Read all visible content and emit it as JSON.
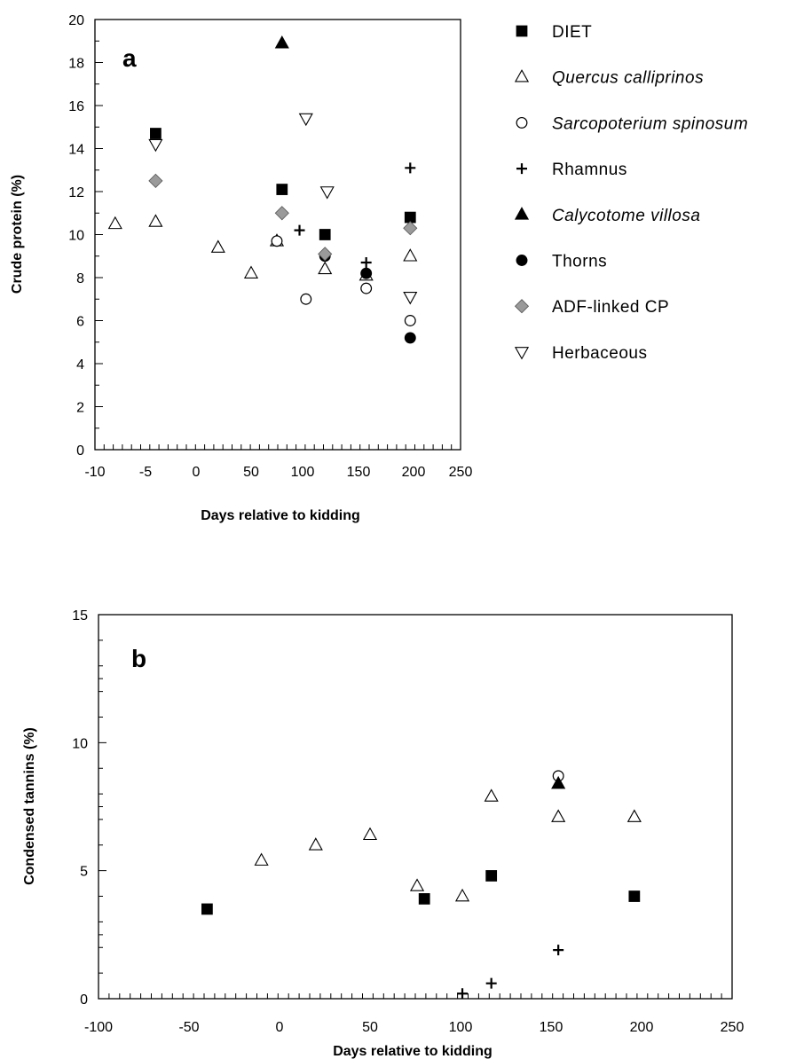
{
  "marker_styles": {
    "DIET": "filled-square",
    "Quercus calliprinos": "open-triangle-up",
    "Sarcopoterium spinosum": "open-circle",
    "Rhamnus": "plus",
    "Calycotome villosa": "filled-triangle-up",
    "Thorns": "filled-circle",
    "ADF-linked CP": "gray-diamond",
    "Herbaceous": "open-triangle-down"
  },
  "colors": {
    "ink": "#000000",
    "diamond_fill": "#9a9a9a"
  },
  "legend": {
    "entries": [
      {
        "label": "DIET",
        "italic": false
      },
      {
        "label": "Quercus calliprinos",
        "italic": true
      },
      {
        "label": "Sarcopoterium spinosum",
        "italic": true
      },
      {
        "label": "Rhamnus",
        "italic": false
      },
      {
        "label": "Calycotome villosa",
        "italic": true
      },
      {
        "label": "Thorns",
        "italic": false
      },
      {
        "label": "ADF-linked CP",
        "italic": false
      },
      {
        "label": "Herbaceous",
        "italic": false
      }
    ]
  },
  "chart_data": [
    {
      "type": "scatter",
      "panel_label": "a",
      "xlabel": "Days relative to kidding",
      "ylabel": "Crude protein (%)",
      "xticks": [
        -10,
        -5,
        0,
        50,
        100,
        150,
        200,
        250
      ],
      "yticks": [
        0,
        2,
        4,
        6,
        8,
        10,
        12,
        14,
        16,
        18,
        20
      ],
      "ylim": [
        0,
        20
      ],
      "legend_position": "right",
      "series": [
        {
          "name": "DIET",
          "points": [
            [
              -4,
              14.7
            ],
            [
              80,
              12.1
            ],
            [
              120,
              10.0
            ],
            [
              197,
              10.8
            ]
          ]
        },
        {
          "name": "Quercus calliprinos",
          "points": [
            [
              -4,
              10.6
            ],
            [
              -8,
              10.5
            ],
            [
              20,
              9.4
            ],
            [
              50,
              8.2
            ],
            [
              75,
              9.7
            ],
            [
              120,
              8.4
            ],
            [
              157,
              8.1
            ],
            [
              197,
              9.0
            ]
          ]
        },
        {
          "name": "Sarcopoterium spinosum",
          "points": [
            [
              75,
              9.7
            ],
            [
              103,
              7.0
            ],
            [
              157,
              7.5
            ],
            [
              197,
              6.0
            ]
          ]
        },
        {
          "name": "Rhamnus",
          "points": [
            [
              97,
              10.2
            ],
            [
              157,
              8.7
            ],
            [
              197,
              13.1
            ]
          ]
        },
        {
          "name": "Calycotome villosa",
          "points": [
            [
              80,
              18.9
            ]
          ]
        },
        {
          "name": "Thorns",
          "points": [
            [
              120,
              9.0
            ],
            [
              157,
              8.2
            ],
            [
              197,
              5.2
            ]
          ]
        },
        {
          "name": "ADF-linked CP",
          "points": [
            [
              -4,
              12.5
            ],
            [
              80,
              11.0
            ],
            [
              120,
              9.1
            ],
            [
              197,
              10.3
            ]
          ]
        },
        {
          "name": "Herbaceous",
          "points": [
            [
              -4,
              14.2
            ],
            [
              103,
              15.4
            ],
            [
              122,
              12.0
            ],
            [
              197,
              7.1
            ]
          ]
        }
      ]
    },
    {
      "type": "scatter",
      "panel_label": "b",
      "xlabel": "Days relative to kidding",
      "ylabel": "Condensed tannins (%)",
      "xticks": [
        -100,
        -50,
        0,
        50,
        100,
        150,
        200,
        250
      ],
      "yticks": [
        0,
        5,
        10,
        15
      ],
      "xlim": [
        -100,
        250
      ],
      "ylim": [
        0,
        15
      ],
      "series": [
        {
          "name": "DIET",
          "points": [
            [
              -40,
              3.5
            ],
            [
              80,
              3.9
            ],
            [
              117,
              4.8
            ],
            [
              196,
              4.0
            ]
          ]
        },
        {
          "name": "Quercus calliprinos",
          "points": [
            [
              -10,
              5.4
            ],
            [
              20,
              6.0
            ],
            [
              50,
              6.4
            ],
            [
              76,
              4.4
            ],
            [
              101,
              4.0
            ],
            [
              117,
              7.9
            ],
            [
              154,
              7.1
            ],
            [
              196,
              7.1
            ]
          ]
        },
        {
          "name": "Sarcopoterium spinosum",
          "points": [
            [
              154,
              8.7
            ]
          ]
        },
        {
          "name": "Rhamnus",
          "points": [
            [
              101,
              0.2
            ],
            [
              117,
              0.6
            ],
            [
              154,
              1.9
            ]
          ]
        },
        {
          "name": "Calycotome villosa",
          "points": [
            [
              154,
              8.4
            ]
          ]
        }
      ]
    }
  ]
}
